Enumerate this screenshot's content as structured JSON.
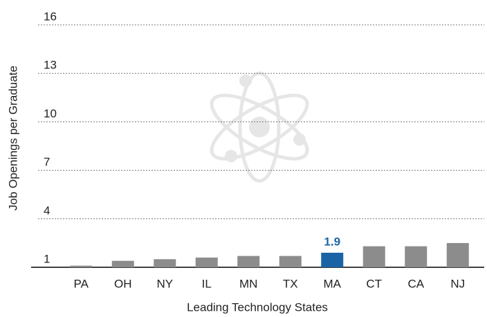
{
  "chart_data": {
    "type": "bar",
    "x_label": "Leading Technology States",
    "y_label": "Job Openings per Graduate",
    "categories": [
      "PA",
      "OH",
      "NY",
      "IL",
      "MN",
      "TX",
      "MA",
      "CT",
      "CA",
      "NJ"
    ],
    "values": [
      1.1,
      1.4,
      1.5,
      1.6,
      1.7,
      1.7,
      1.9,
      2.3,
      2.3,
      2.5
    ],
    "color": "#8c8c8c",
    "highlight": "MA",
    "highlight_color": "#1a64a6",
    "ylim": [
      1,
      16
    ],
    "yticks": [
      1,
      4,
      7,
      10,
      13,
      16
    ],
    "grid": true
  }
}
